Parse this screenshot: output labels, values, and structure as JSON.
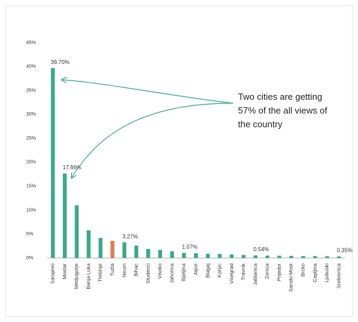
{
  "chart_data": {
    "type": "bar",
    "categories": [
      "Sarajevo",
      "Mostar",
      "Medjugorje",
      "Banja Luka",
      "Trebinje",
      "Tuzla",
      "Neum",
      "Bihac",
      "Studenci",
      "Visoko",
      "Jahorina",
      "Bijeljina",
      "Jajce",
      "Blagaj",
      "Konjic",
      "Visegrad",
      "Travnik",
      "Jablanica",
      "Zenica",
      "Prijedor",
      "Sanski-Most",
      "Brcko",
      "Capljina",
      "Ljubuski",
      "Srebrenica"
    ],
    "values": [
      39.7,
      17.66,
      11,
      5.8,
      4.2,
      3.6,
      3.27,
      2.6,
      1.9,
      1.7,
      1.4,
      1.07,
      1.0,
      0.9,
      0.85,
      0.75,
      0.65,
      0.54,
      0.5,
      0.48,
      0.45,
      0.42,
      0.4,
      0.38,
      0.35
    ],
    "value_labels": [
      "39.70%",
      "17.66%",
      null,
      null,
      null,
      null,
      "3.27%",
      null,
      null,
      null,
      null,
      "1.07%",
      null,
      null,
      null,
      null,
      null,
      "0.54%",
      null,
      null,
      null,
      null,
      null,
      null,
      "0.35%"
    ],
    "colors": [
      "#3aa98a",
      "#3aa98a",
      "#3aa98a",
      "#3aa98a",
      "#3aa98a",
      "#e07b50",
      "#3aa98a",
      "#3aa98a",
      "#3aa98a",
      "#3aa98a",
      "#3aa98a",
      "#3aa98a",
      "#3aa98a",
      "#3aa98a",
      "#3aa98a",
      "#3aa98a",
      "#3aa98a",
      "#3aa98a",
      "#3aa98a",
      "#3aa98a",
      "#3aa98a",
      "#3aa98a",
      "#3aa98a",
      "#3aa98a",
      "#3aa98a"
    ],
    "ylim": [
      0,
      45
    ],
    "yticks": [
      {
        "value": 0,
        "label": "0%"
      },
      {
        "value": 5,
        "label": "5%"
      },
      {
        "value": 10,
        "label": "10%"
      },
      {
        "value": 15,
        "label": "15%"
      },
      {
        "value": 20,
        "label": "20%"
      },
      {
        "value": 25,
        "label": "25%"
      },
      {
        "value": 30,
        "label": "30%"
      },
      {
        "value": 35,
        "label": "35%"
      },
      {
        "value": 40,
        "label": "40%"
      },
      {
        "value": 45,
        "label": "45%"
      }
    ],
    "annotation": [
      "Two cities are getting",
      "57% of the all views of",
      "the country"
    ]
  }
}
